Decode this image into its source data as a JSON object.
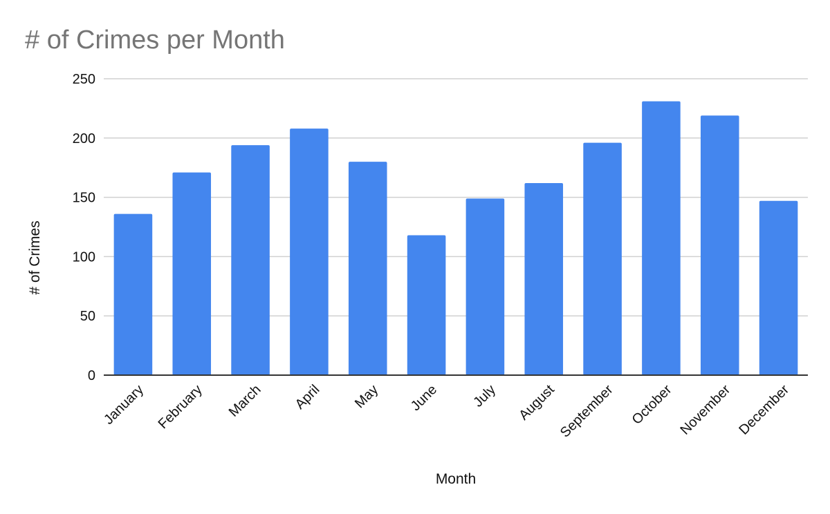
{
  "chart_data": {
    "type": "bar",
    "title": "# of Crimes per Month",
    "xlabel": "Month",
    "ylabel": "# of Crimes",
    "categories": [
      "January",
      "February",
      "March",
      "April",
      "May",
      "June",
      "July",
      "August",
      "September",
      "October",
      "November",
      "December"
    ],
    "values": [
      136,
      171,
      194,
      208,
      180,
      118,
      149,
      162,
      196,
      231,
      219,
      147
    ],
    "ylim": [
      0,
      250
    ],
    "yticks": [
      0,
      50,
      100,
      150,
      200,
      250
    ],
    "grid": true,
    "legend": "none",
    "bar_color": "#4486ee"
  }
}
